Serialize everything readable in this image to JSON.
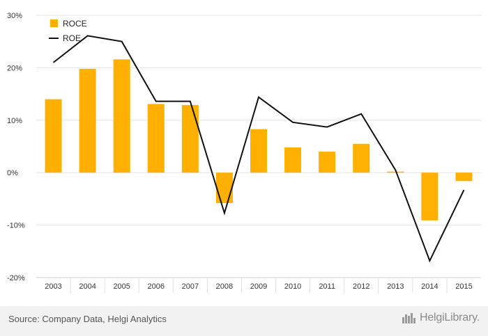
{
  "chart_data": {
    "type": "bar",
    "categories": [
      "2003",
      "2004",
      "2005",
      "2006",
      "2007",
      "2008",
      "2009",
      "2010",
      "2011",
      "2012",
      "2013",
      "2014",
      "2015"
    ],
    "series": [
      {
        "name": "ROCE",
        "kind": "bar",
        "color": "#ffb000",
        "values": [
          14.0,
          19.8,
          21.6,
          13.1,
          12.9,
          -5.8,
          8.3,
          4.8,
          4.0,
          5.5,
          0.2,
          -9.1,
          -1.6
        ]
      },
      {
        "name": "ROE",
        "kind": "line",
        "color": "#111111",
        "values": [
          21.0,
          26.1,
          25.0,
          13.6,
          13.6,
          -7.7,
          14.4,
          9.6,
          8.7,
          11.2,
          0.5,
          -16.8,
          -3.3
        ]
      }
    ],
    "ylim": [
      -20,
      30
    ],
    "yticks": [
      -20,
      -10,
      0,
      10,
      20,
      30
    ],
    "ytick_labels": [
      "-20%",
      "-10%",
      "0%",
      "10%",
      "20%",
      "30%"
    ],
    "grid": true,
    "legend_position": "top-left"
  },
  "footer": {
    "source": "Source: Company Data, Helgi Analytics",
    "brand": "HelgiLibrary."
  }
}
